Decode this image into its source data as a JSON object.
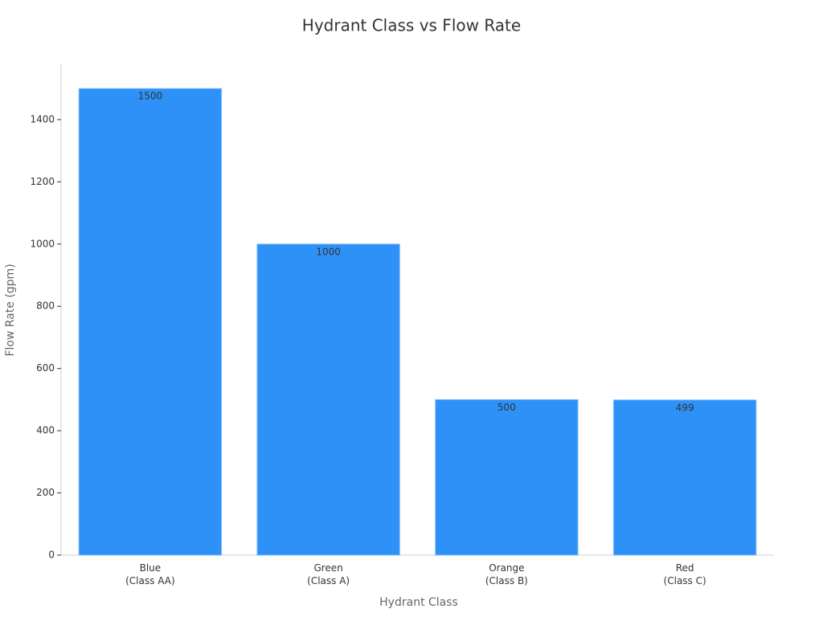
{
  "chart_data": {
    "type": "bar",
    "title": "Hydrant Class vs Flow Rate",
    "x_label": "Hydrant Class",
    "y_label": "Flow Rate (gpm)",
    "categories": [
      "Blue\n(Class AA)",
      "Green\n(Class A)",
      "Orange\n(Class B)",
      "Red\n(Class C)"
    ],
    "values": [
      1500,
      1000,
      500,
      499
    ],
    "color": "#2e91f8",
    "ylim": [
      0,
      1578
    ],
    "yticks": [
      0,
      200,
      400,
      600,
      800,
      1000,
      1200,
      1400
    ],
    "grid": false
  }
}
